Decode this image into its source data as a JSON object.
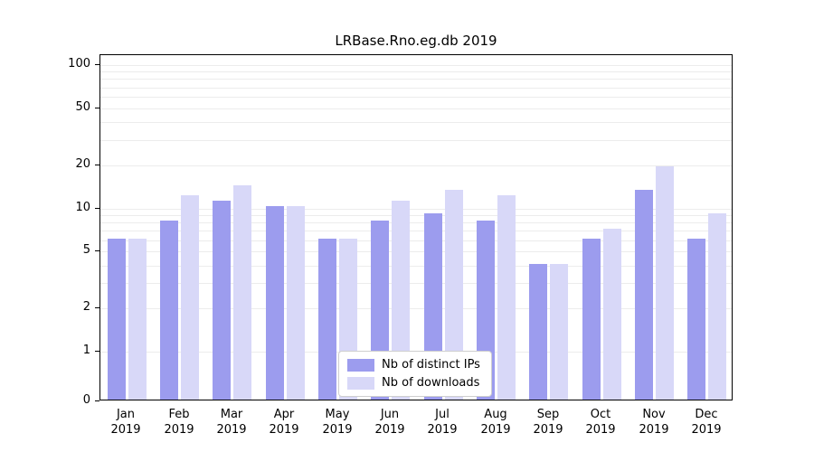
{
  "figure": {
    "title": "LRBase.Rno.eg.db 2019"
  },
  "chart_data": {
    "type": "bar",
    "title": "LRBase.Rno.eg.db 2019",
    "categories": [
      "Jan",
      "Feb",
      "Mar",
      "Apr",
      "May",
      "Jun",
      "Jul",
      "Aug",
      "Sep",
      "Oct",
      "Nov",
      "Dec"
    ],
    "year_label": "2019",
    "series": [
      {
        "name": "Nb of distinct IPs",
        "color": "#9c9cee",
        "values": [
          6,
          8,
          11,
          10,
          6,
          8,
          9,
          8,
          4,
          6,
          13,
          6
        ]
      },
      {
        "name": "Nb of downloads",
        "color": "#d8d8f8",
        "values": [
          6,
          12,
          14,
          10,
          6,
          11,
          13,
          12,
          4,
          7,
          19,
          9
        ]
      }
    ],
    "yticks": [
      0,
      1,
      2,
      5,
      10,
      20,
      50,
      100
    ],
    "ylim": [
      0,
      100
    ],
    "scale": "log",
    "grid": true,
    "legend_position": "bottom-center",
    "gridline_values": [
      1,
      2,
      3,
      4,
      5,
      6,
      7,
      8,
      9,
      10,
      20,
      30,
      40,
      50,
      60,
      70,
      80,
      90,
      100
    ]
  }
}
